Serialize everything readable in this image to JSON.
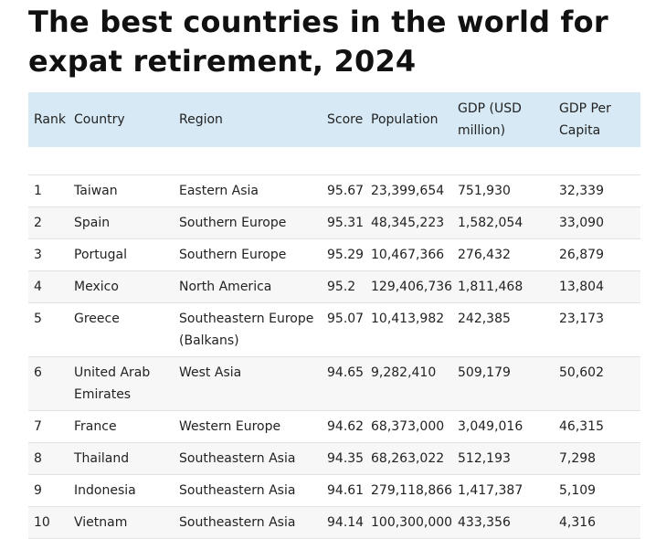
{
  "title": "The best countries in the world for expat retirement, 2024",
  "table": {
    "headers": {
      "rank": "Rank",
      "country": "Country",
      "region": "Region",
      "score": "Score",
      "population": "Population",
      "gdp": "GDP (USD million)",
      "gdp_per_capita": "GDP Per Capita"
    },
    "rows": [
      {
        "rank": "1",
        "country": "Taiwan",
        "region": "Eastern Asia",
        "score": "95.67",
        "population": "23,399,654",
        "gdp": "751,930",
        "gdp_per_capita": "32,339"
      },
      {
        "rank": "2",
        "country": "Spain",
        "region": "Southern Europe",
        "score": "95.31",
        "population": "48,345,223",
        "gdp": "1,582,054",
        "gdp_per_capita": "33,090"
      },
      {
        "rank": "3",
        "country": "Portugal",
        "region": "Southern Europe",
        "score": "95.29",
        "population": "10,467,366",
        "gdp": "276,432",
        "gdp_per_capita": "26,879"
      },
      {
        "rank": "4",
        "country": "Mexico",
        "region": "North America",
        "score": "95.2",
        "population": "129,406,736",
        "gdp": "1,811,468",
        "gdp_per_capita": "13,804"
      },
      {
        "rank": "5",
        "country": "Greece",
        "region": "Southeastern Europe (Balkans)",
        "score": "95.07",
        "population": "10,413,982",
        "gdp": "242,385",
        "gdp_per_capita": "23,173"
      },
      {
        "rank": "6",
        "country": "United Arab Emirates",
        "region": "West Asia",
        "score": "94.65",
        "population": "9,282,410",
        "gdp": "509,179",
        "gdp_per_capita": "50,602"
      },
      {
        "rank": "7",
        "country": "France",
        "region": "Western Europe",
        "score": "94.62",
        "population": "68,373,000",
        "gdp": "3,049,016",
        "gdp_per_capita": "46,315"
      },
      {
        "rank": "8",
        "country": "Thailand",
        "region": "Southeastern Asia",
        "score": "94.35",
        "population": "68,263,022",
        "gdp": "512,193",
        "gdp_per_capita": "7,298"
      },
      {
        "rank": "9",
        "country": "Indonesia",
        "region": "Southeastern Asia",
        "score": "94.61",
        "population": "279,118,866",
        "gdp": "1,417,387",
        "gdp_per_capita": "5,109"
      },
      {
        "rank": "10",
        "country": "Vietnam",
        "region": "Southeastern Asia",
        "score": "94.14",
        "population": "100,300,000",
        "gdp": "433,356",
        "gdp_per_capita": "4,316"
      }
    ]
  }
}
